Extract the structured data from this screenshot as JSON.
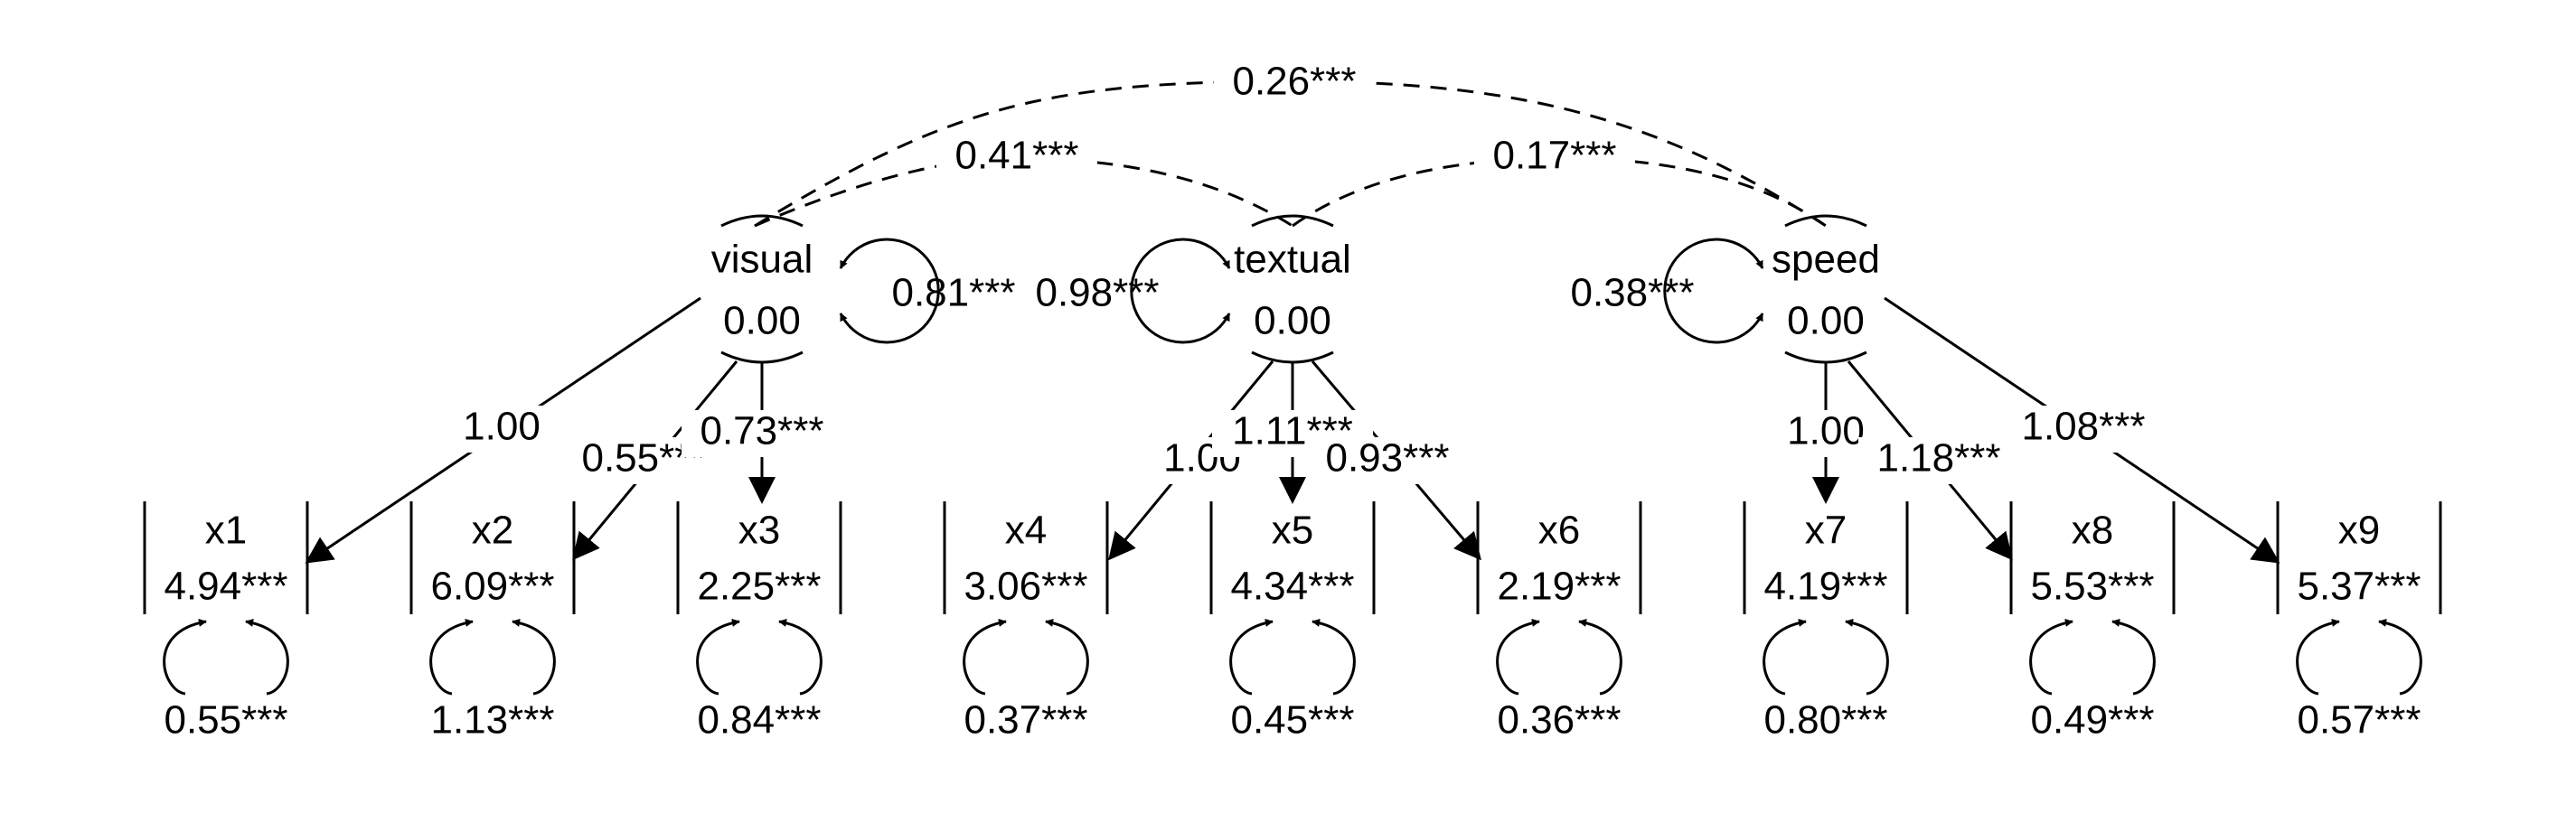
{
  "colors": {
    "background": "#ffffff",
    "ink": "#000000"
  },
  "diagram": {
    "type": "path-diagram",
    "latents": [
      {
        "id": "visual",
        "label": "visual",
        "intercept": "0.00",
        "variance": "0.81***"
      },
      {
        "id": "textual",
        "label": "textual",
        "intercept": "0.00",
        "variance": "0.98***"
      },
      {
        "id": "speed",
        "label": "speed",
        "intercept": "0.00",
        "variance": "0.38***"
      }
    ],
    "covariances": [
      {
        "from": "visual",
        "to": "speed",
        "label": "0.26***"
      },
      {
        "from": "visual",
        "to": "textual",
        "label": "0.41***"
      },
      {
        "from": "textual",
        "to": "speed",
        "label": "0.17***"
      }
    ],
    "indicators": [
      {
        "id": "x1",
        "label": "x1",
        "intercept": "4.94***",
        "residual": "0.55***"
      },
      {
        "id": "x2",
        "label": "x2",
        "intercept": "6.09***",
        "residual": "1.13***"
      },
      {
        "id": "x3",
        "label": "x3",
        "intercept": "2.25***",
        "residual": "0.84***"
      },
      {
        "id": "x4",
        "label": "x4",
        "intercept": "3.06***",
        "residual": "0.37***"
      },
      {
        "id": "x5",
        "label": "x5",
        "intercept": "4.34***",
        "residual": "0.45***"
      },
      {
        "id": "x6",
        "label": "x6",
        "intercept": "2.19***",
        "residual": "0.36***"
      },
      {
        "id": "x7",
        "label": "x7",
        "intercept": "4.19***",
        "residual": "0.80***"
      },
      {
        "id": "x8",
        "label": "x8",
        "intercept": "5.53***",
        "residual": "0.49***"
      },
      {
        "id": "x9",
        "label": "x9",
        "intercept": "5.37***",
        "residual": "0.57***"
      }
    ],
    "loadings": [
      {
        "from": "visual",
        "to": "x1",
        "label": "1.00"
      },
      {
        "from": "visual",
        "to": "x2",
        "label": "0.55***"
      },
      {
        "from": "visual",
        "to": "x3",
        "label": "0.73***"
      },
      {
        "from": "textual",
        "to": "x4",
        "label": "1.00"
      },
      {
        "from": "textual",
        "to": "x5",
        "label": "1.11***"
      },
      {
        "from": "textual",
        "to": "x6",
        "label": "0.93***"
      },
      {
        "from": "speed",
        "to": "x7",
        "label": "1.00"
      },
      {
        "from": "speed",
        "to": "x8",
        "label": "1.18***"
      },
      {
        "from": "speed",
        "to": "x9",
        "label": "1.08***"
      }
    ]
  }
}
